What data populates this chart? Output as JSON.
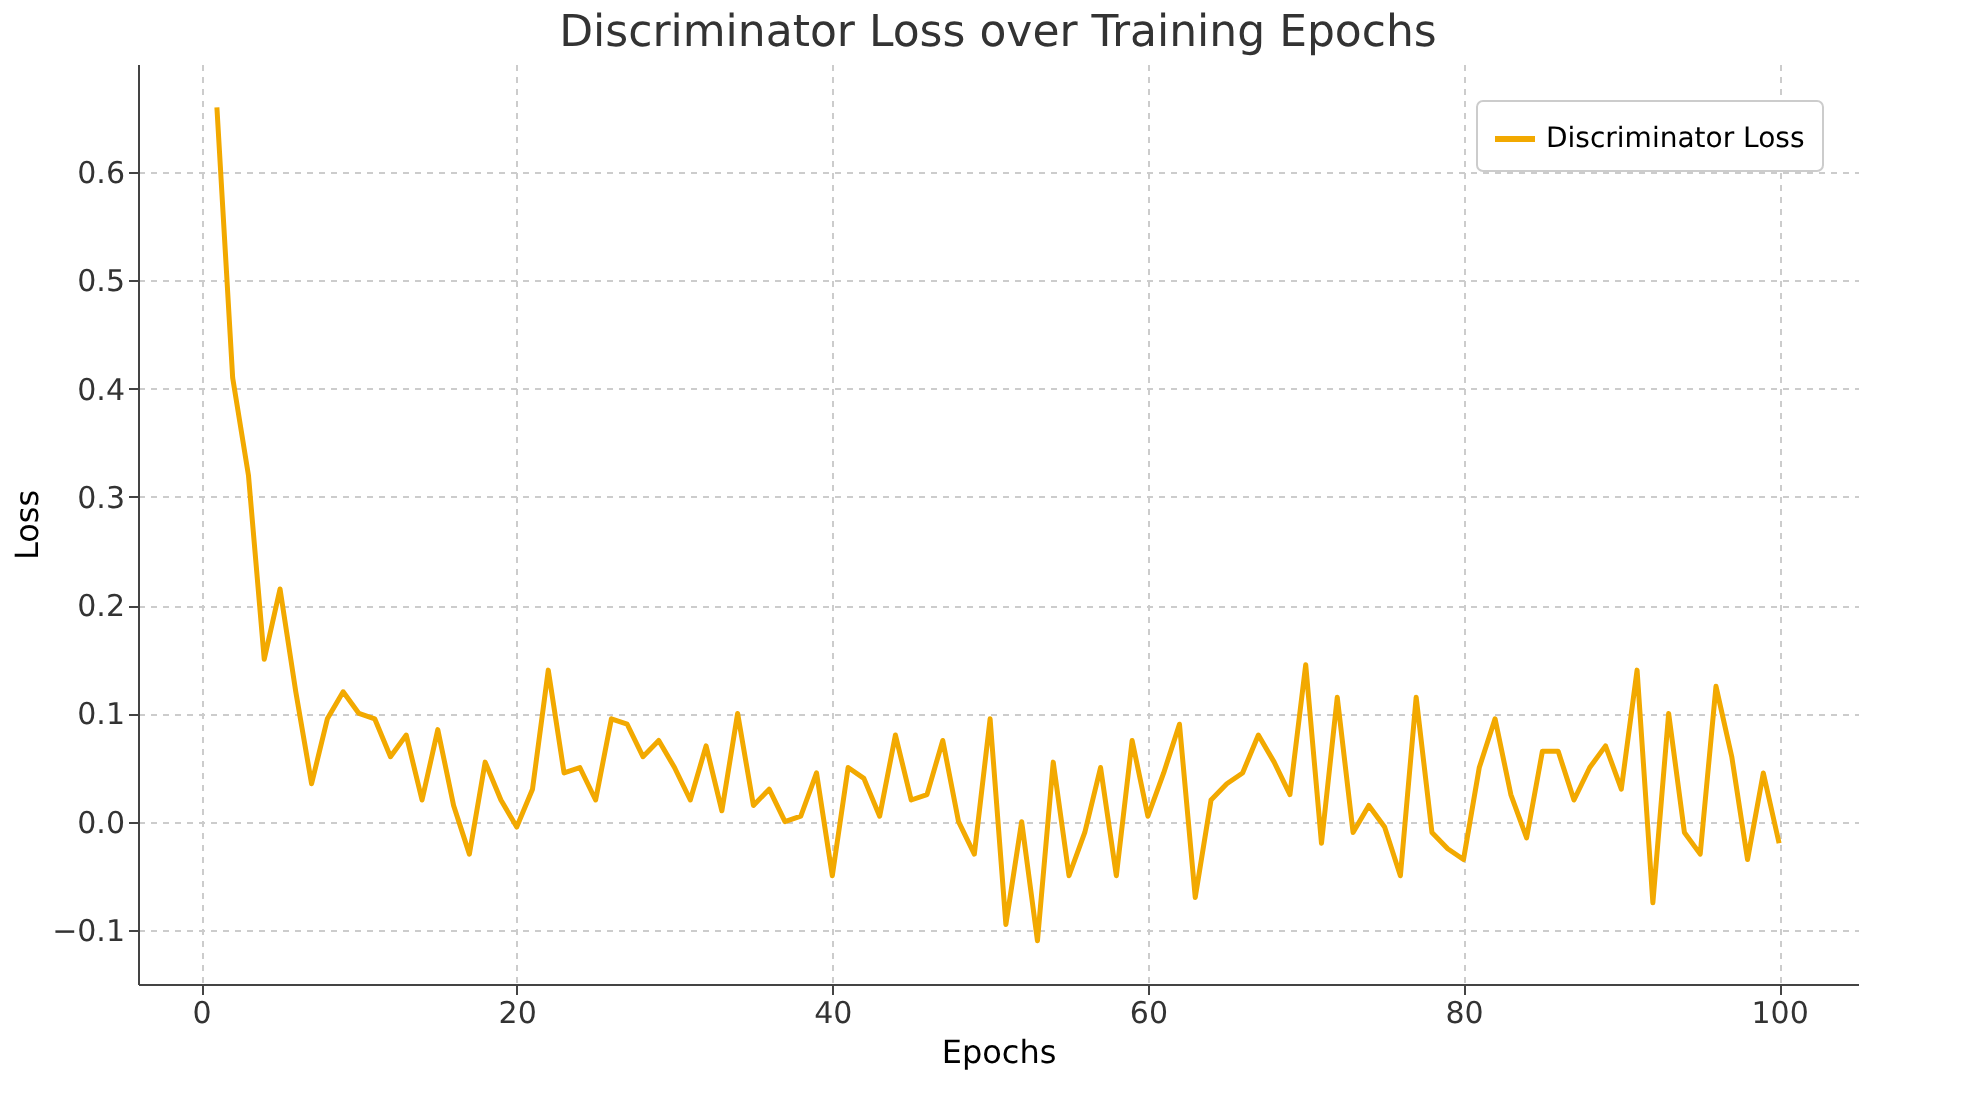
{
  "chart_data": {
    "type": "line",
    "title": "Discriminator Loss over Training Epochs",
    "xlabel": "Epochs",
    "ylabel": "Loss",
    "x": [
      1,
      2,
      3,
      4,
      5,
      6,
      7,
      8,
      9,
      10,
      11,
      12,
      13,
      14,
      15,
      16,
      17,
      18,
      19,
      20,
      21,
      22,
      23,
      24,
      25,
      26,
      27,
      28,
      29,
      30,
      31,
      32,
      33,
      34,
      35,
      36,
      37,
      38,
      39,
      40,
      41,
      42,
      43,
      44,
      45,
      46,
      47,
      48,
      49,
      50,
      51,
      52,
      53,
      54,
      55,
      56,
      57,
      58,
      59,
      60,
      61,
      62,
      63,
      64,
      65,
      66,
      67,
      68,
      69,
      70,
      71,
      72,
      73,
      74,
      75,
      76,
      77,
      78,
      79,
      80,
      81,
      82,
      83,
      84,
      85,
      86,
      87,
      88,
      89,
      90,
      91,
      92,
      93,
      94,
      95,
      96,
      97,
      98,
      99,
      100
    ],
    "series": [
      {
        "name": "Discriminator Loss",
        "color": "#f2a900",
        "values": [
          0.66,
          0.41,
          0.32,
          0.15,
          0.215,
          0.12,
          0.035,
          0.095,
          0.12,
          0.1,
          0.095,
          0.06,
          0.08,
          0.02,
          0.085,
          0.015,
          -0.03,
          0.055,
          0.02,
          -0.005,
          0.03,
          0.14,
          0.045,
          0.05,
          0.02,
          0.095,
          0.09,
          0.06,
          0.075,
          0.05,
          0.02,
          0.07,
          0.01,
          0.1,
          0.015,
          0.03,
          0.0,
          0.005,
          0.045,
          -0.05,
          0.05,
          0.04,
          0.005,
          0.08,
          0.02,
          0.025,
          0.075,
          0.0,
          -0.03,
          0.095,
          -0.095,
          0.0,
          -0.11,
          0.055,
          -0.05,
          -0.01,
          0.05,
          -0.05,
          0.075,
          0.005,
          0.045,
          0.09,
          -0.07,
          0.02,
          0.035,
          0.045,
          0.08,
          0.055,
          0.025,
          0.145,
          -0.02,
          0.115,
          -0.01,
          0.015,
          -0.005,
          -0.05,
          0.115,
          -0.01,
          -0.025,
          -0.035,
          0.05,
          0.095,
          0.025,
          -0.015,
          0.065,
          0.065,
          0.02,
          0.05,
          0.07,
          0.03,
          0.14,
          -0.075,
          0.1,
          -0.01,
          -0.03,
          0.125,
          0.06,
          -0.035,
          0.045,
          -0.02
        ]
      }
    ],
    "xlim": [
      -4,
      105
    ],
    "ylim": [
      -0.15,
      0.7
    ],
    "xticks": [
      0,
      20,
      40,
      60,
      80,
      100
    ],
    "yticks": [
      {
        "value": -0.1,
        "label": "−0.1"
      },
      {
        "value": 0,
        "label": "0.0"
      },
      {
        "value": 0.1,
        "label": "0.1"
      },
      {
        "value": 0.2,
        "label": "0.2"
      },
      {
        "value": 0.3,
        "label": "0.3"
      },
      {
        "value": 0.4,
        "label": "0.4"
      },
      {
        "value": 0.5,
        "label": "0.5"
      },
      {
        "value": 0.6,
        "label": "0.6"
      }
    ],
    "grid": true,
    "legend": "top right",
    "marker": "none",
    "line_style": "solid"
  }
}
